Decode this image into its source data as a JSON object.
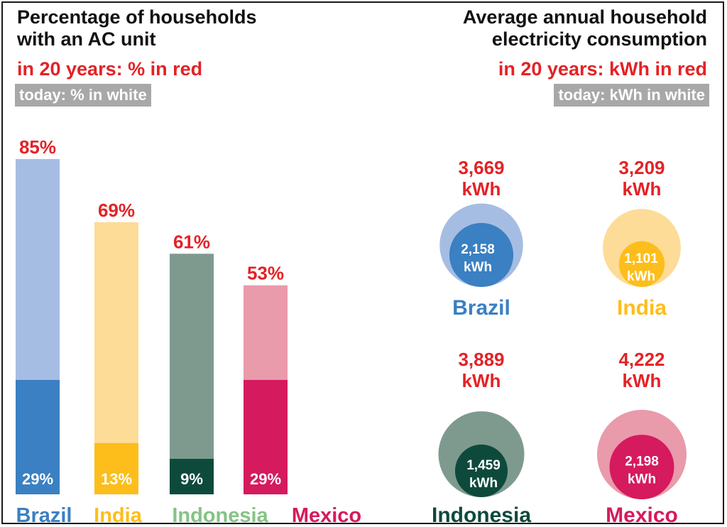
{
  "left_panel": {
    "title_line1": "Percentage of households",
    "title_line2": "with an AC unit",
    "future_note": "in 20 years: % in red",
    "today_note": "today: % in white"
  },
  "right_panel": {
    "title_line1": "Average annual household",
    "title_line2": "electricity consumption",
    "future_note": "in 20 years: kWh in red",
    "today_note": "today: kWh in white"
  },
  "colors": {
    "future_label": "#e32226",
    "today_label": "#ffffff",
    "Brazil": {
      "dark": "#3a80c2",
      "light": "#a6bde3"
    },
    "India": {
      "dark": "#fdbe1b",
      "light": "#fddc98"
    },
    "Indonesia": {
      "dark": "#0d4a3c",
      "light": "#7e9a8e",
      "label": "#84c386"
    },
    "Mexico": {
      "dark": "#d51a5d",
      "light": "#e99aab"
    }
  },
  "chart_data": [
    {
      "type": "bar",
      "categories": [
        "Brazil",
        "India",
        "Indonesia",
        "Mexico"
      ],
      "series": [
        {
          "name": "in 20 years",
          "values": [
            85,
            69,
            61,
            53
          ],
          "labels": [
            "85%",
            "69%",
            "61%",
            "53%"
          ]
        },
        {
          "name": "today",
          "values": [
            29,
            13,
            9,
            29
          ],
          "labels": [
            "29%",
            "13%",
            "9%",
            "29%"
          ]
        }
      ],
      "ylim": [
        0,
        85
      ]
    },
    {
      "type": "bubble",
      "categories": [
        "Brazil",
        "India",
        "Indonesia",
        "Mexico"
      ],
      "series": [
        {
          "name": "in 20 years",
          "values": [
            3669,
            3209,
            3889,
            4222
          ],
          "labels": [
            "3,669",
            "3,209",
            "3,889",
            "4,222"
          ]
        },
        {
          "name": "today",
          "values": [
            2158,
            1101,
            1459,
            2198
          ],
          "labels": [
            "2,158",
            "1,101",
            "1,459",
            "2,198"
          ]
        }
      ],
      "unit": "kWh"
    }
  ]
}
